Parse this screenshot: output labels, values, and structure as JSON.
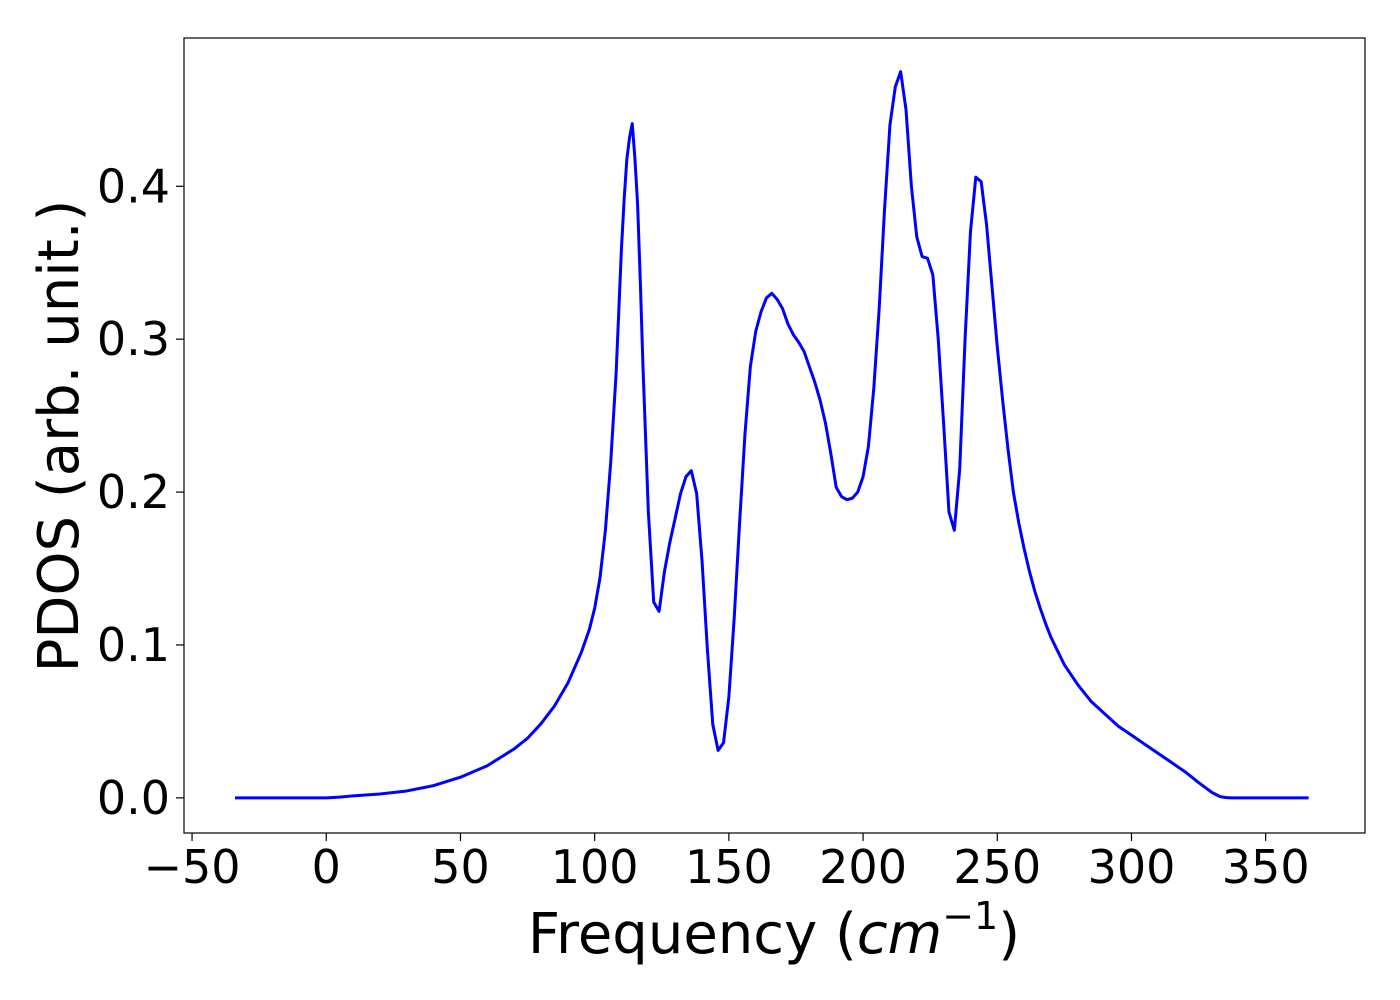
{
  "chart_data": {
    "type": "line",
    "title": "",
    "xlabel": "Frequency ($cm^{-1}$)",
    "xlabel_parts": {
      "prefix": "Frequency (",
      "math": "cm",
      "sup": "−1",
      "suffix": ")"
    },
    "ylabel": "PDOS (arb. unit.)",
    "xlim": [
      -53,
      387
    ],
    "ylim": [
      -0.023,
      0.497
    ],
    "xticks": [
      -50,
      0,
      50,
      100,
      150,
      200,
      250,
      300,
      350
    ],
    "xtick_labels": [
      "−50",
      "0",
      "50",
      "100",
      "150",
      "200",
      "250",
      "300",
      "350"
    ],
    "yticks": [
      0.0,
      0.1,
      0.2,
      0.3,
      0.4
    ],
    "ytick_labels": [
      "0.0",
      "0.1",
      "0.2",
      "0.3",
      "0.4"
    ],
    "grid": false,
    "legend": false,
    "series": [
      {
        "color": "#0000ff",
        "x": [
          -34,
          -20,
          0,
          5,
          10,
          20,
          30,
          40,
          50,
          60,
          70,
          75,
          80,
          85,
          90,
          95,
          98,
          100,
          102,
          104,
          106,
          108,
          110,
          111,
          112,
          113,
          114,
          115,
          116,
          117,
          118,
          120,
          122,
          124,
          126,
          128,
          130,
          132,
          134,
          136,
          138,
          140,
          142,
          144,
          146,
          148,
          150,
          152,
          154,
          156,
          158,
          160,
          162,
          164,
          166,
          168,
          170,
          172,
          174,
          176,
          178,
          180,
          182,
          184,
          186,
          188,
          190,
          192,
          194,
          196,
          198,
          200,
          202,
          204,
          206,
          208,
          210,
          212,
          214,
          216,
          218,
          220,
          222,
          224,
          226,
          228,
          230,
          232,
          234,
          236,
          238,
          240,
          242,
          244,
          246,
          248,
          250,
          252,
          254,
          256,
          258,
          260,
          262,
          264,
          266,
          268,
          270,
          275,
          280,
          285,
          290,
          295,
          300,
          305,
          310,
          315,
          320,
          325,
          330,
          333,
          335,
          337,
          340,
          345,
          350,
          360,
          366
        ],
        "y": [
          0.0,
          0.0,
          0.0,
          0.0005,
          0.0013,
          0.0025,
          0.0045,
          0.008,
          0.0135,
          0.021,
          0.032,
          0.039,
          0.0485,
          0.06,
          0.075,
          0.095,
          0.11,
          0.124,
          0.144,
          0.175,
          0.22,
          0.278,
          0.36,
          0.392,
          0.418,
          0.432,
          0.441,
          0.418,
          0.388,
          0.338,
          0.282,
          0.187,
          0.128,
          0.122,
          0.148,
          0.167,
          0.183,
          0.199,
          0.21,
          0.214,
          0.199,
          0.155,
          0.097,
          0.048,
          0.031,
          0.036,
          0.066,
          0.118,
          0.18,
          0.238,
          0.282,
          0.305,
          0.318,
          0.327,
          0.33,
          0.326,
          0.32,
          0.31,
          0.303,
          0.298,
          0.292,
          0.282,
          0.272,
          0.26,
          0.245,
          0.225,
          0.203,
          0.197,
          0.195,
          0.196,
          0.2,
          0.21,
          0.23,
          0.268,
          0.32,
          0.385,
          0.44,
          0.465,
          0.475,
          0.45,
          0.4,
          0.367,
          0.354,
          0.353,
          0.342,
          0.3,
          0.245,
          0.187,
          0.175,
          0.215,
          0.3,
          0.37,
          0.406,
          0.403,
          0.375,
          0.335,
          0.295,
          0.26,
          0.228,
          0.2,
          0.18,
          0.163,
          0.148,
          0.135,
          0.124,
          0.114,
          0.105,
          0.087,
          0.074,
          0.063,
          0.055,
          0.047,
          0.041,
          0.035,
          0.029,
          0.023,
          0.017,
          0.01,
          0.0035,
          0.0008,
          0.0002,
          0.0,
          0.0,
          0.0,
          0.0,
          0.0,
          0.0
        ]
      }
    ]
  }
}
